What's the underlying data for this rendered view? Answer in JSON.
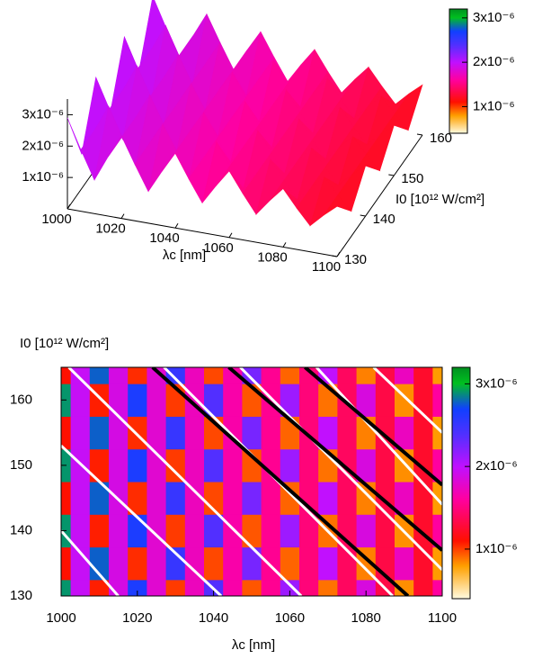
{
  "chart_data": [
    {
      "type": "surface",
      "x_label": "λc [nm]",
      "y_label": "I0 [10¹² W/cm²]",
      "xlim": [
        1000,
        1100
      ],
      "xticks": [
        1000,
        1020,
        1040,
        1060,
        1080,
        1100
      ],
      "ylim": [
        130,
        160
      ],
      "yticks": [
        130,
        140,
        150,
        160
      ],
      "zlim": [
        0,
        3.5e-06
      ],
      "zticks": [
        {
          "value": 1e-06,
          "label": "1x10⁻⁶"
        },
        {
          "value": 2e-06,
          "label": "2x10⁻⁶"
        },
        {
          "value": 3e-06,
          "label": "3x10⁻⁶"
        }
      ],
      "cblim": [
        4e-07,
        3.2e-06
      ],
      "cbticks": [
        {
          "value": 1e-06,
          "label": "1x10⁻⁶"
        },
        {
          "value": 2e-06,
          "label": "2x10⁻⁶"
        },
        {
          "value": 3e-06,
          "label": "3x10⁻⁶"
        }
      ]
    },
    {
      "type": "heatmap",
      "x_label": "λc [nm]",
      "y_label": "I0 [10¹² W/cm²]",
      "xlim": [
        1000,
        1100
      ],
      "xticks": [
        1000,
        1020,
        1040,
        1060,
        1080,
        1100
      ],
      "ylim": [
        130,
        165
      ],
      "yticks": [
        130,
        140,
        150,
        160
      ],
      "cblim": [
        4e-07,
        3.2e-06
      ],
      "cbticks": [
        {
          "value": 1e-06,
          "label": "1x10⁻⁶"
        },
        {
          "value": 2e-06,
          "label": "2x10⁻⁶"
        },
        {
          "value": 3e-06,
          "label": "3x10⁻⁶"
        }
      ],
      "x": [
        1000,
        1005,
        1010,
        1015,
        1020,
        1025,
        1030,
        1035,
        1040,
        1045,
        1050,
        1055,
        1060,
        1065,
        1070,
        1075,
        1080,
        1085,
        1090,
        1095,
        1100
      ],
      "y": [
        130,
        135,
        140,
        145,
        150,
        155,
        160,
        165
      ],
      "z": [
        [
          2.9e-06,
          1.96e-06,
          1.07e-06,
          1.88e-06,
          2.64e-06,
          1.8e-06,
          1.01e-06,
          1.72e-06,
          2.38e-06,
          1.64e-06,
          9.5e-07,
          1.56e-06,
          2.12e-06,
          1.48e-06,
          8.9e-07,
          1.4e-06,
          1.86e-06,
          1.32e-06,
          8.3e-07,
          1.24e-06,
          1.6e-06
        ],
        [
          1.1e-06,
          1.96e-06,
          2.77e-06,
          1.88e-06,
          1.04e-06,
          1.8e-06,
          2.51e-06,
          1.72e-06,
          9.8e-07,
          1.64e-06,
          2.25e-06,
          1.56e-06,
          9.2e-07,
          1.48e-06,
          1.99e-06,
          1.4e-06,
          8.6e-07,
          1.32e-06,
          1.73e-06,
          1.24e-06,
          8e-07
        ],
        [
          2.9e-06,
          1.96e-06,
          1.07e-06,
          1.88e-06,
          2.64e-06,
          1.8e-06,
          1.01e-06,
          1.72e-06,
          2.38e-06,
          1.64e-06,
          9.5e-07,
          1.56e-06,
          2.12e-06,
          1.48e-06,
          8.9e-07,
          1.4e-06,
          1.86e-06,
          1.32e-06,
          8.3e-07,
          1.24e-06,
          1.6e-06
        ],
        [
          1.1e-06,
          1.96e-06,
          2.77e-06,
          1.88e-06,
          1.04e-06,
          1.8e-06,
          2.51e-06,
          1.72e-06,
          9.8e-07,
          1.64e-06,
          2.25e-06,
          1.56e-06,
          9.2e-07,
          1.48e-06,
          1.99e-06,
          1.4e-06,
          8.6e-07,
          1.32e-06,
          1.73e-06,
          1.24e-06,
          8e-07
        ],
        [
          2.9e-06,
          1.96e-06,
          1.07e-06,
          1.88e-06,
          2.64e-06,
          1.8e-06,
          1.01e-06,
          1.72e-06,
          2.38e-06,
          1.64e-06,
          9.5e-07,
          1.56e-06,
          2.12e-06,
          1.48e-06,
          8.9e-07,
          1.4e-06,
          1.86e-06,
          1.32e-06,
          8.3e-07,
          1.24e-06,
          1.6e-06
        ],
        [
          1.1e-06,
          1.96e-06,
          2.77e-06,
          1.88e-06,
          1.04e-06,
          1.8e-06,
          2.51e-06,
          1.72e-06,
          9.8e-07,
          1.64e-06,
          2.25e-06,
          1.56e-06,
          9.2e-07,
          1.48e-06,
          1.99e-06,
          1.4e-06,
          8.6e-07,
          1.32e-06,
          1.73e-06,
          1.24e-06,
          8e-07
        ],
        [
          2.9e-06,
          1.96e-06,
          1.07e-06,
          1.88e-06,
          2.64e-06,
          1.8e-06,
          1.01e-06,
          1.72e-06,
          2.38e-06,
          1.64e-06,
          9.5e-07,
          1.56e-06,
          2.12e-06,
          1.48e-06,
          8.9e-07,
          1.4e-06,
          1.86e-06,
          1.32e-06,
          8.3e-07,
          1.24e-06,
          1.6e-06
        ],
        [
          1.1e-06,
          1.96e-06,
          2.77e-06,
          1.88e-06,
          1.04e-06,
          1.8e-06,
          2.51e-06,
          1.72e-06,
          9.8e-07,
          1.64e-06,
          2.25e-06,
          1.56e-06,
          9.2e-07,
          1.48e-06,
          1.99e-06,
          1.4e-06,
          8.6e-07,
          1.32e-06,
          1.73e-06,
          1.24e-06,
          8e-07
        ]
      ],
      "lines": [
        {
          "color": "#ffffff",
          "x": [
            1000,
            1015
          ],
          "y": [
            140,
            130
          ]
        },
        {
          "color": "#ffffff",
          "x": [
            1000,
            1042
          ],
          "y": [
            153,
            130
          ]
        },
        {
          "color": "#ffffff",
          "x": [
            1002,
            1063
          ],
          "y": [
            165,
            130
          ]
        },
        {
          "color": "#ffffff",
          "x": [
            1027,
            1087
          ],
          "y": [
            165,
            130
          ]
        },
        {
          "color": "#ffffff",
          "x": [
            1047,
            1100
          ],
          "y": [
            165,
            134
          ]
        },
        {
          "color": "#ffffff",
          "x": [
            1067,
            1100
          ],
          "y": [
            165,
            144
          ]
        },
        {
          "color": "#ffffff",
          "x": [
            1082,
            1100
          ],
          "y": [
            165,
            155
          ]
        },
        {
          "color": "#000000",
          "x": [
            1024,
            1091
          ],
          "y": [
            165,
            130
          ]
        },
        {
          "color": "#000000",
          "x": [
            1044,
            1100
          ],
          "y": [
            165,
            137
          ]
        },
        {
          "color": "#000000",
          "x": [
            1064,
            1100
          ],
          "y": [
            165,
            147
          ]
        }
      ]
    }
  ]
}
